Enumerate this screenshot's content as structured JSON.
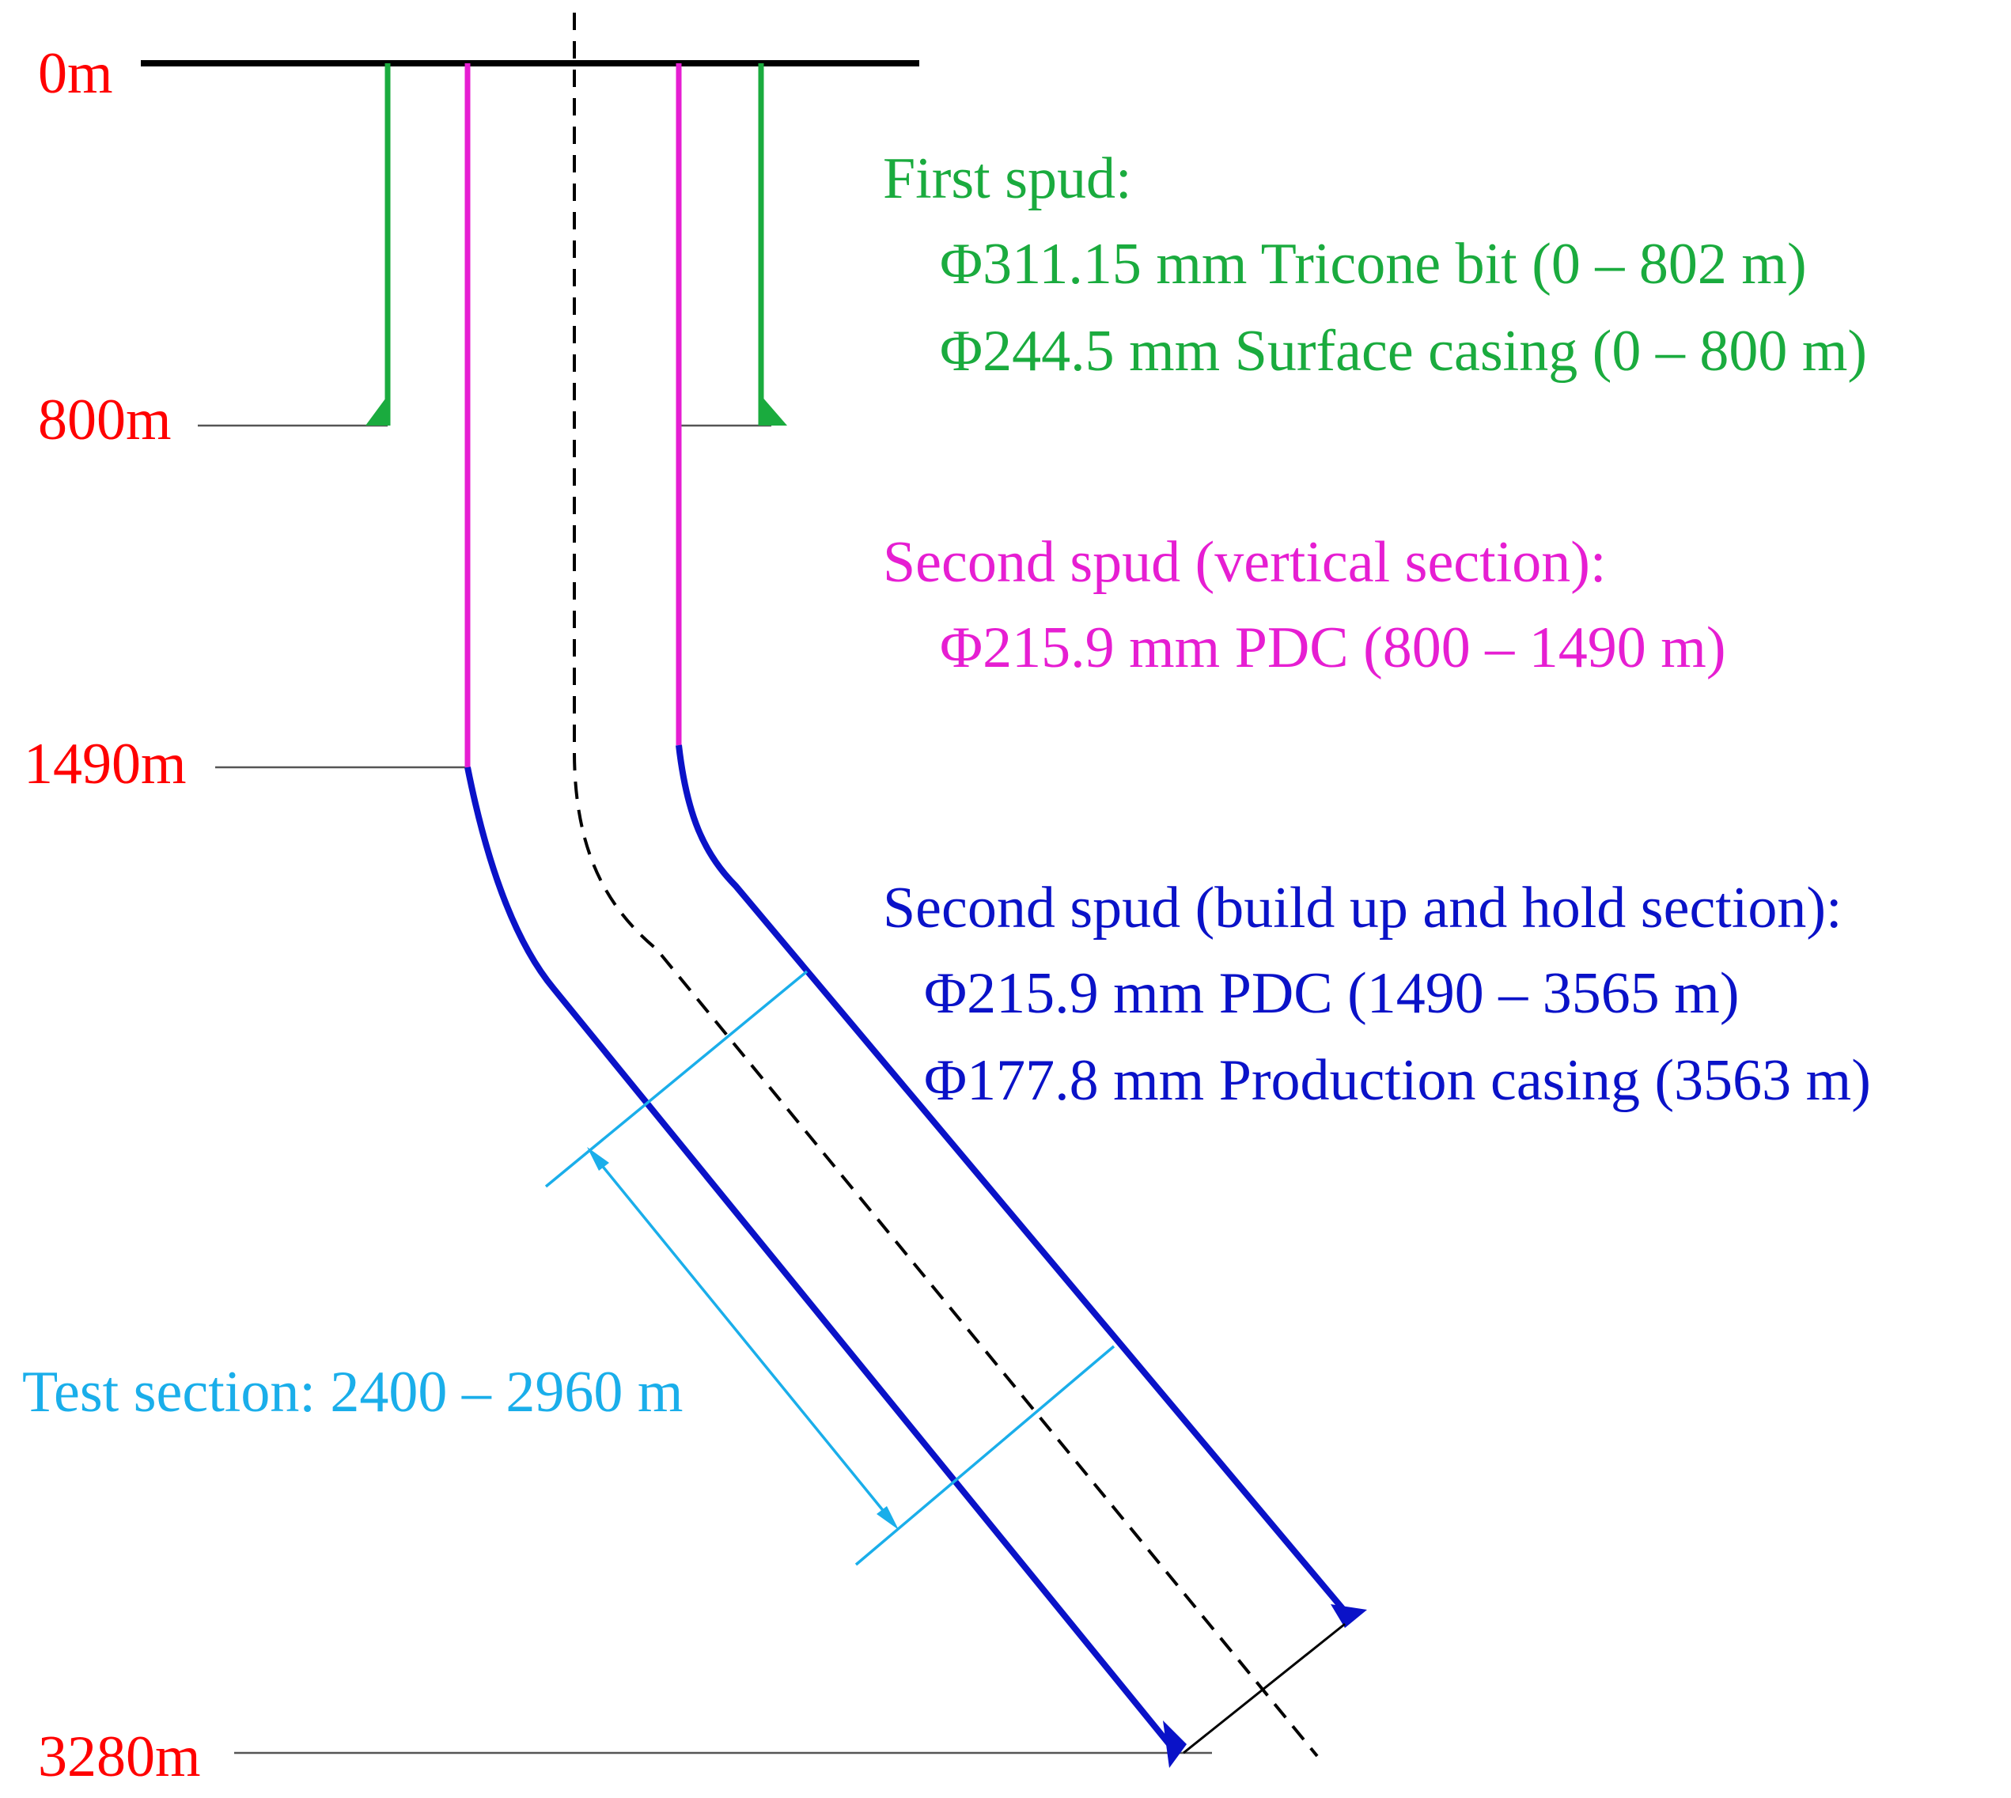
{
  "depth_labels": {
    "d0": "0m",
    "d800": "800m",
    "d1490": "1490m",
    "d3280": "3280m"
  },
  "first_spud": {
    "heading": "First spud:",
    "line1": "Φ311.15 mm Tricone bit (0 – 802 m)",
    "line2": "Φ244.5 mm Surface casing (0 – 800 m)"
  },
  "second_spud_vertical": {
    "heading": "Second spud (vertical section):",
    "line1": "Φ215.9 mm PDC (800 – 1490 m)"
  },
  "second_spud_build": {
    "heading": "Second spud (build up and hold section):",
    "line1": "Φ215.9 mm PDC (1490 – 3565 m)",
    "line2": "Φ177.8 mm Production casing (3563 m)"
  },
  "test_section": {
    "label": "Test section: 2400 – 2960 m"
  },
  "colors": {
    "surface_casing": "#1aab3e",
    "vertical_section": "#e61ed2",
    "build_section": "#0a12c8",
    "test_section": "#1aaeea",
    "depth_label": "#ff0000",
    "centerline": "#000000"
  }
}
